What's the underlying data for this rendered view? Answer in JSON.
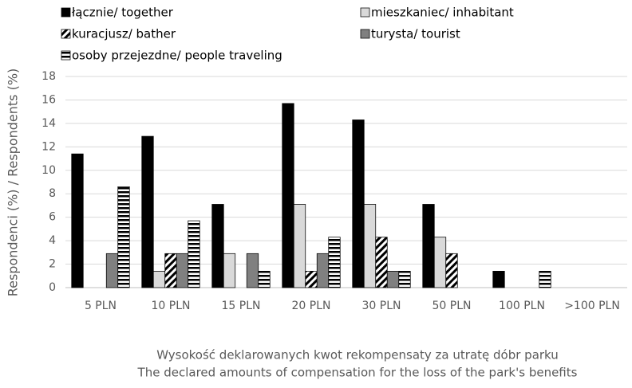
{
  "chart_data": {
    "type": "bar",
    "y_label": "Respondenci (%) / Respondents (%)",
    "x_label": [
      "Wysokość deklarowanych kwot rekompensaty za utratę dóbr parku",
      "The declared amounts of compensation for the loss of the park's benefits"
    ],
    "categories": [
      "5 PLN",
      "10 PLN",
      "15 PLN",
      "20 PLN",
      "30 PLN",
      "50 PLN",
      "100 PLN",
      ">100 PLN"
    ],
    "series": [
      {
        "name": "łącznie/ together",
        "color": "#000000",
        "pattern": "solid",
        "values": [
          11.4,
          12.9,
          7.1,
          15.7,
          14.3,
          7.1,
          1.4,
          0
        ]
      },
      {
        "name": "mieszkaniec/ inhabitant",
        "color": "#d9d9d9",
        "pattern": "solid",
        "values": [
          0,
          1.4,
          2.9,
          7.1,
          7.1,
          4.3,
          0,
          0
        ]
      },
      {
        "name": "kuracjusz/ bather",
        "color": "#000000",
        "pattern": "diagonal",
        "values": [
          0,
          2.9,
          0,
          1.4,
          4.3,
          2.9,
          0,
          0
        ]
      },
      {
        "name": "turysta/ tourist",
        "color": "#808080",
        "pattern": "solid",
        "values": [
          2.9,
          2.9,
          2.9,
          2.9,
          1.4,
          0,
          0,
          0
        ]
      },
      {
        "name": "osoby przejezdne/ people traveling",
        "color": "#000000",
        "pattern": "horizontal",
        "values": [
          8.6,
          5.7,
          1.4,
          4.3,
          1.4,
          0,
          1.4,
          0
        ]
      }
    ],
    "ylim": [
      0,
      18
    ],
    "yticks": [
      0,
      2,
      4,
      6,
      8,
      10,
      12,
      14,
      16,
      18
    ],
    "grid": true,
    "legend": "top"
  }
}
